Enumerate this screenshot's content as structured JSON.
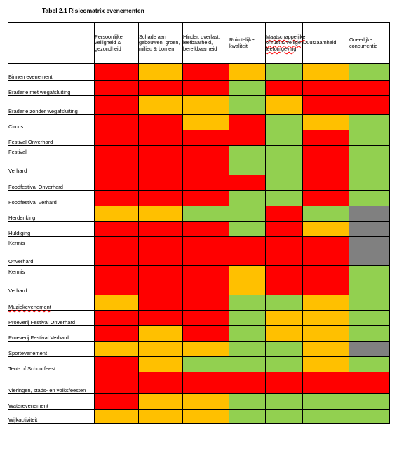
{
  "title": "Tabel 2.1 Risicomatrix evenementen",
  "columns": [
    "Persoonlijke veiligheid & gezondheid",
    "Schade aan gebouwen, groen, milieu & bomen",
    "Hinder, overlast, leefbaarheid, bereikbaarheid",
    "Ruimtelijke kwaliteit",
    "Maatschappelijke onrust & veilige leefomgeving",
    "Duurzaamheid",
    "Oneerlijke concurrentie"
  ],
  "rows": [
    {
      "label": "Binnen evenement",
      "cells": [
        "r",
        "o",
        "r",
        "o",
        "g",
        "o",
        "g"
      ]
    },
    {
      "label": "Braderie met wegafsluiting",
      "cells": [
        "r",
        "r",
        "r",
        "g",
        "r",
        "r",
        "r"
      ]
    },
    {
      "label": "Braderie zonder wegafsluiting",
      "cells": [
        "r",
        "o",
        "o",
        "g",
        "o",
        "r",
        "r"
      ]
    },
    {
      "label": "Circus",
      "cells": [
        "r",
        "r",
        "o",
        "r",
        "g",
        "o",
        "g"
      ]
    },
    {
      "label": "Festival Onverhard",
      "cells": [
        "r",
        "r",
        "r",
        "r",
        "g",
        "r",
        "g"
      ]
    },
    {
      "label": "Festival",
      "label2": "Verhard",
      "cells": [
        "r",
        "r",
        "r",
        "g",
        "g",
        "r",
        "g"
      ]
    },
    {
      "label": "Foodfestival Onverhard",
      "cells": [
        "r",
        "r",
        "r",
        "r",
        "g",
        "r",
        "g"
      ]
    },
    {
      "label": "Foodfestival Verhard",
      "cells": [
        "r",
        "r",
        "r",
        "g",
        "g",
        "r",
        "g"
      ]
    },
    {
      "label": "Herdenking",
      "cells": [
        "o",
        "o",
        "g",
        "g",
        "r",
        "g",
        "x"
      ]
    },
    {
      "label": "Huldiging",
      "cells": [
        "r",
        "r",
        "r",
        "g",
        "r",
        "o",
        "x"
      ]
    },
    {
      "label": "Kermis",
      "label2": "Onverhard",
      "cells": [
        "r",
        "r",
        "r",
        "r",
        "r",
        "r",
        "x"
      ]
    },
    {
      "label": "Kermis",
      "label2": "Verhard",
      "cells": [
        "r",
        "r",
        "r",
        "o",
        "r",
        "r",
        "g"
      ]
    },
    {
      "label": "Muziekevenement",
      "cells": [
        "o",
        "r",
        "r",
        "g",
        "g",
        "o",
        "g"
      ]
    },
    {
      "label": "Proeverij Festival Onverhard",
      "cells": [
        "r",
        "r",
        "r",
        "g",
        "o",
        "o",
        "g"
      ]
    },
    {
      "label": "Proeverij Festival Verhard",
      "cells": [
        "r",
        "o",
        "r",
        "g",
        "o",
        "o",
        "g"
      ]
    },
    {
      "label": "Sportevenement",
      "cells": [
        "o",
        "o",
        "o",
        "g",
        "g",
        "o",
        "x"
      ]
    },
    {
      "label": "Tent- of Schuurfeest",
      "cells": [
        "r",
        "o",
        "g",
        "g",
        "g",
        "o",
        "g"
      ]
    },
    {
      "label": "Vieringen, stads- en volksfeesten",
      "cells": [
        "r",
        "r",
        "r",
        "r",
        "r",
        "r",
        "r"
      ]
    },
    {
      "label": "Waterevenement",
      "cells": [
        "r",
        "o",
        "o",
        "g",
        "g",
        "g",
        "g"
      ]
    },
    {
      "label": "Wijkactiviteit",
      "cells": [
        "o",
        "o",
        "o",
        "g",
        "g",
        "g",
        "g"
      ]
    }
  ],
  "colors": {
    "r": "#ff0000",
    "o": "#ffc000",
    "g": "#92d050",
    "x": "#808080"
  }
}
